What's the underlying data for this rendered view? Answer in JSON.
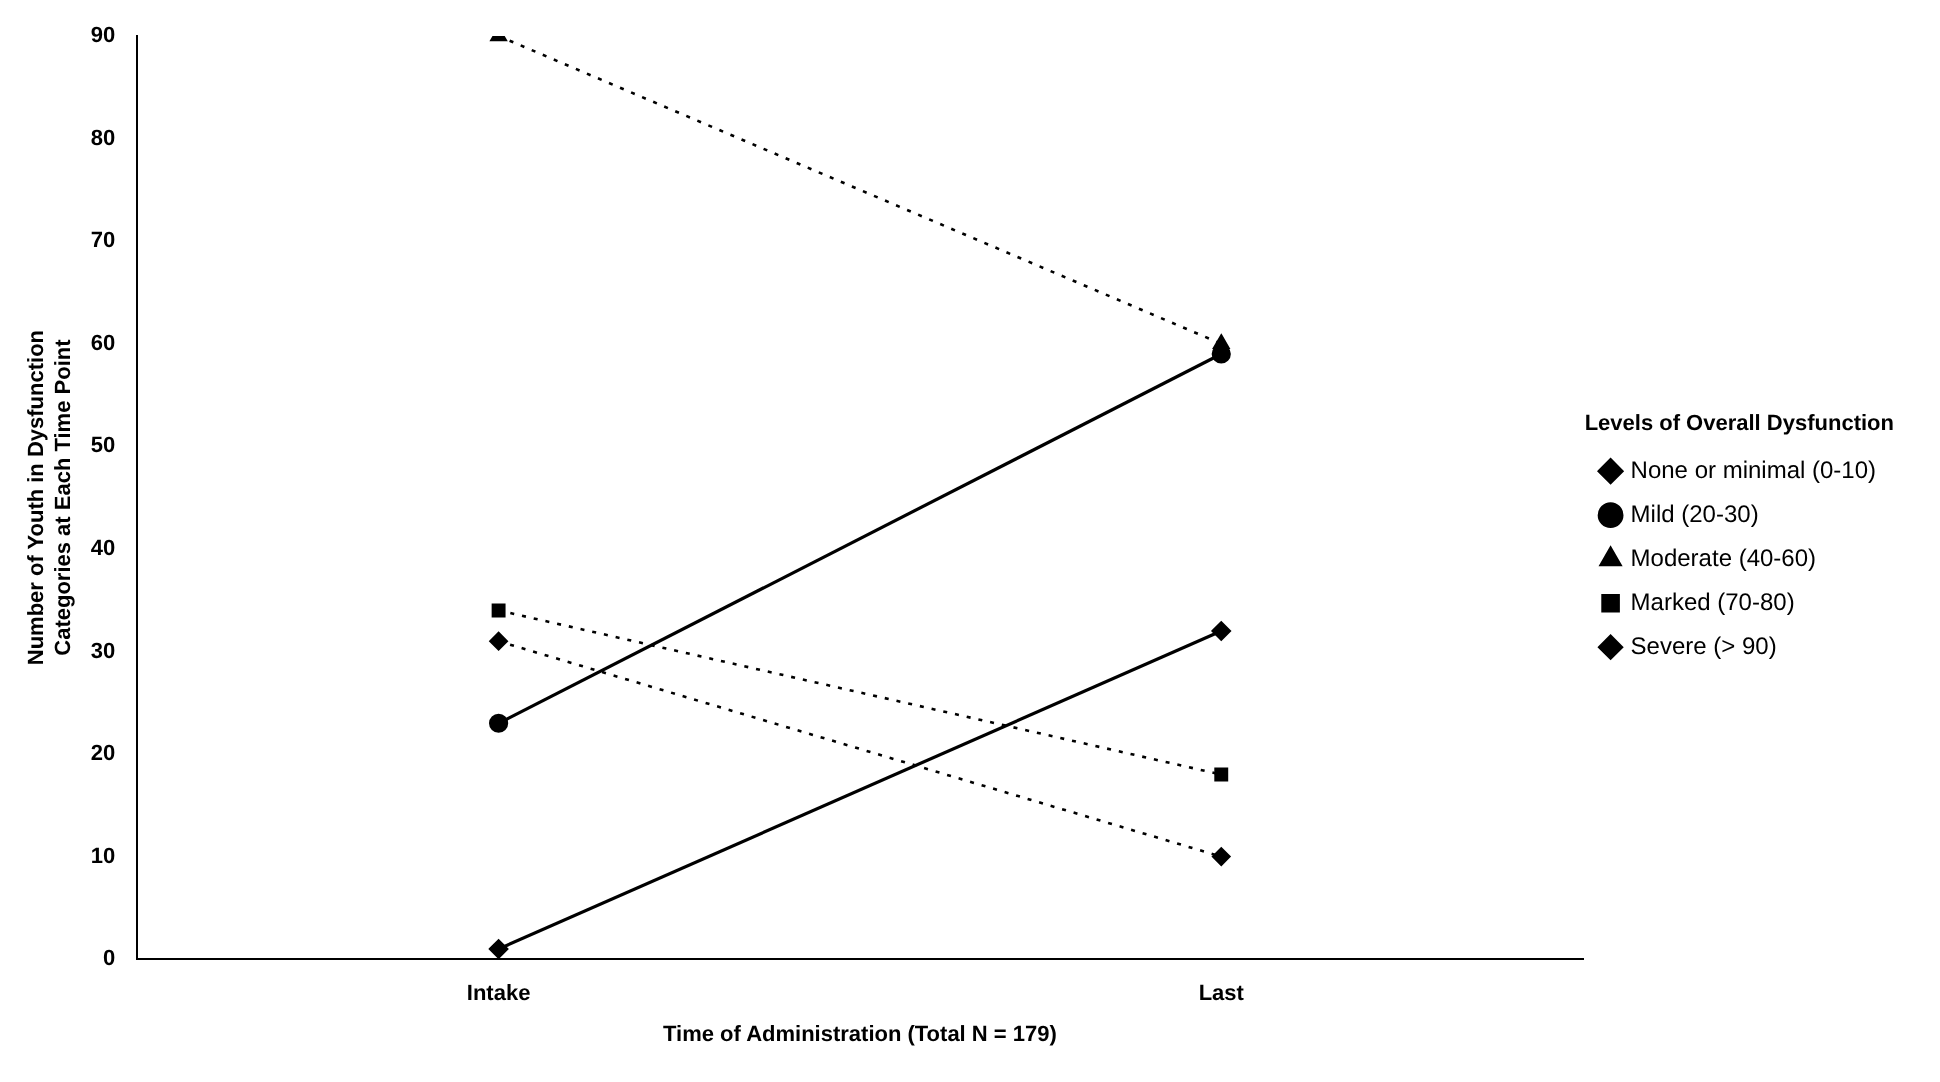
{
  "chart_data": {
    "type": "line",
    "xlabel": "Time of Administration (Total N = 179)",
    "ylabel": "Number of Youth in Dysfunction\nCategories at Each Time Point",
    "legend_title": "Levels of Overall Dysfunction",
    "categories": [
      "Intake",
      "Last"
    ],
    "series": [
      {
        "name": "None or minimal (0-10)",
        "color": "#000000",
        "values": [
          1,
          32
        ],
        "marker": "diamond",
        "line_style": "solid"
      },
      {
        "name": "Mild (20-30)",
        "color": "#000000",
        "values": [
          23,
          59
        ],
        "marker": "circle",
        "line_style": "solid"
      },
      {
        "name": "Moderate (40-60)",
        "color": "#000000",
        "values": [
          90,
          60
        ],
        "marker": "triangle",
        "line_style": "dotted"
      },
      {
        "name": "Marked (70-80)",
        "color": "#000000",
        "values": [
          34,
          18
        ],
        "marker": "square",
        "line_style": "dotted"
      },
      {
        "name": "Severe (> 90)",
        "color": "#000000",
        "values": [
          31,
          10
        ],
        "marker": "diamond",
        "line_style": "dotted"
      }
    ],
    "ylim": [
      0,
      90
    ],
    "yticks": [
      0,
      10,
      20,
      30,
      40,
      50,
      60,
      70,
      80,
      90
    ],
    "grid": false,
    "legend": "right"
  }
}
